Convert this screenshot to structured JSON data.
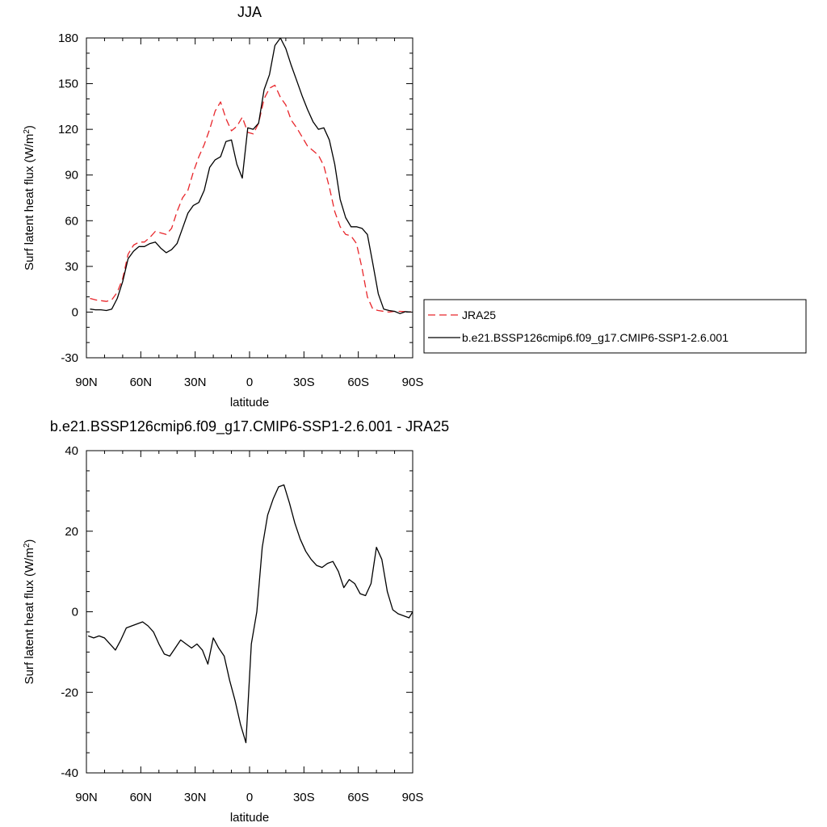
{
  "chart_data": [
    {
      "type": "line",
      "title": "JJA",
      "xlabel": "latitude",
      "ylabel": "Surf latent heat flux (W/m",
      "ylabel_sup": "2",
      "ylabel_end": ")",
      "xlim": [
        90,
        -90
      ],
      "ylim": [
        -30,
        180
      ],
      "xticks": [
        90,
        60,
        30,
        0,
        -30,
        -60,
        -90
      ],
      "xtick_labels": [
        "90N",
        "60N",
        "30N",
        "0",
        "30S",
        "60S",
        "90S"
      ],
      "yticks": [
        -30,
        0,
        30,
        60,
        90,
        120,
        150,
        180
      ],
      "ytick_labels": [
        "-30",
        "0",
        "30",
        "60",
        "90",
        "120",
        "150",
        "180"
      ],
      "legend_position": "right",
      "series": [
        {
          "name": "JRA25",
          "color": "#e8262b",
          "dash": "dashed",
          "x": [
            88,
            85,
            82,
            79,
            76,
            73,
            70,
            67,
            64,
            61,
            58,
            55,
            52,
            49,
            46,
            43,
            40,
            37,
            34,
            31,
            28,
            25,
            22,
            19,
            16,
            13,
            10,
            7,
            4,
            1,
            -2,
            -5,
            -8,
            -11,
            -14,
            -17,
            -20,
            -23,
            -26,
            -29,
            -32,
            -35,
            -38,
            -41,
            -44,
            -47,
            -50,
            -53,
            -56,
            -59,
            -62,
            -65,
            -68,
            -71,
            -74,
            -77,
            -80,
            -83,
            -86,
            -89
          ],
          "y": [
            9,
            8,
            7.5,
            7,
            8,
            13,
            22,
            38,
            44,
            46,
            46,
            49,
            53,
            52,
            51,
            55,
            66,
            75,
            80,
            92,
            102,
            110,
            120,
            132,
            138,
            127,
            119,
            122,
            128,
            118,
            117,
            124,
            140,
            147,
            149,
            141,
            136,
            126,
            121,
            115,
            109,
            106,
            103,
            96,
            82,
            66,
            56,
            51,
            50,
            45,
            29,
            10,
            2,
            1,
            0.5,
            0,
            0.5,
            0.5,
            0.3,
            0.2
          ]
        },
        {
          "name": "b.e21.BSSP126cmip6.f09_g17.CMIP6-SSP1-2.6.001",
          "color": "#000000",
          "dash": "solid",
          "x": [
            88,
            85,
            82,
            79,
            76,
            73,
            70,
            67,
            64,
            61,
            58,
            55,
            52,
            49,
            46,
            43,
            40,
            37,
            34,
            31,
            28,
            25,
            22,
            19,
            16,
            13,
            10,
            7,
            4,
            1,
            -2,
            -5,
            -8,
            -11,
            -14,
            -17,
            -20,
            -23,
            -26,
            -29,
            -32,
            -35,
            -38,
            -41,
            -44,
            -47,
            -50,
            -53,
            -56,
            -59,
            -62,
            -65,
            -68,
            -71,
            -74,
            -77,
            -80,
            -83,
            -86,
            -89
          ],
          "y": [
            2,
            1.5,
            1.5,
            1,
            2,
            9,
            20,
            35,
            40,
            43,
            43,
            45,
            46,
            42,
            39,
            41,
            45,
            55,
            65,
            70,
            72,
            80,
            95,
            100,
            102,
            112,
            113,
            97,
            88,
            121,
            120,
            124,
            146,
            156,
            175,
            180,
            173,
            162,
            152,
            142,
            133,
            125,
            120,
            121,
            113,
            97,
            74,
            62,
            56,
            56,
            55,
            51,
            32,
            12,
            2,
            1,
            0.5,
            -1,
            0.3,
            0
          ]
        }
      ]
    },
    {
      "type": "line",
      "title": "b.e21.BSSP126cmip6.f09_g17.CMIP6-SSP1-2.6.001 - JRA25",
      "xlabel": "latitude",
      "ylabel": "Surf latent heat flux (W/m",
      "ylabel_sup": "2",
      "ylabel_end": ")",
      "xlim": [
        90,
        -90
      ],
      "ylim": [
        -40,
        40
      ],
      "xticks": [
        90,
        60,
        30,
        0,
        -30,
        -60,
        -90
      ],
      "xtick_labels": [
        "90N",
        "60N",
        "30N",
        "0",
        "30S",
        "60S",
        "90S"
      ],
      "yticks": [
        -40,
        -20,
        0,
        20,
        40
      ],
      "ytick_labels": [
        "-40",
        "-20",
        "0",
        "20",
        "40"
      ],
      "series": [
        {
          "color": "#000000",
          "dash": "solid",
          "x": [
            89,
            86,
            83,
            80,
            77,
            74,
            71,
            68,
            65,
            62,
            59,
            56,
            53,
            50,
            47,
            44,
            41,
            38,
            35,
            32,
            29,
            26,
            23,
            20,
            17,
            14,
            11,
            8,
            5,
            2,
            -1,
            -4,
            -7,
            -10,
            -13,
            -16,
            -19,
            -22,
            -25,
            -28,
            -31,
            -34,
            -37,
            -40,
            -43,
            -46,
            -49,
            -52,
            -55,
            -58,
            -61,
            -64,
            -67,
            -70,
            -73,
            -76,
            -79,
            -82,
            -85,
            -88,
            -90
          ],
          "y": [
            -6,
            -6.5,
            -6,
            -6.5,
            -8,
            -9.5,
            -7,
            -4,
            -3.5,
            -3,
            -2.5,
            -3.5,
            -5,
            -8,
            -10.5,
            -11,
            -9,
            -7,
            -8,
            -9,
            -8,
            -9.5,
            -13,
            -6.5,
            -9,
            -11,
            -17,
            -22,
            -28,
            -32.5,
            -8,
            0,
            16,
            24,
            28,
            31,
            31.5,
            27,
            22,
            18,
            15,
            13,
            11.5,
            11,
            12,
            12.5,
            10,
            6,
            8,
            7,
            4.5,
            4,
            7,
            16,
            13,
            5,
            0.5,
            -0.5,
            -1,
            -1.5,
            0
          ]
        }
      ]
    }
  ]
}
